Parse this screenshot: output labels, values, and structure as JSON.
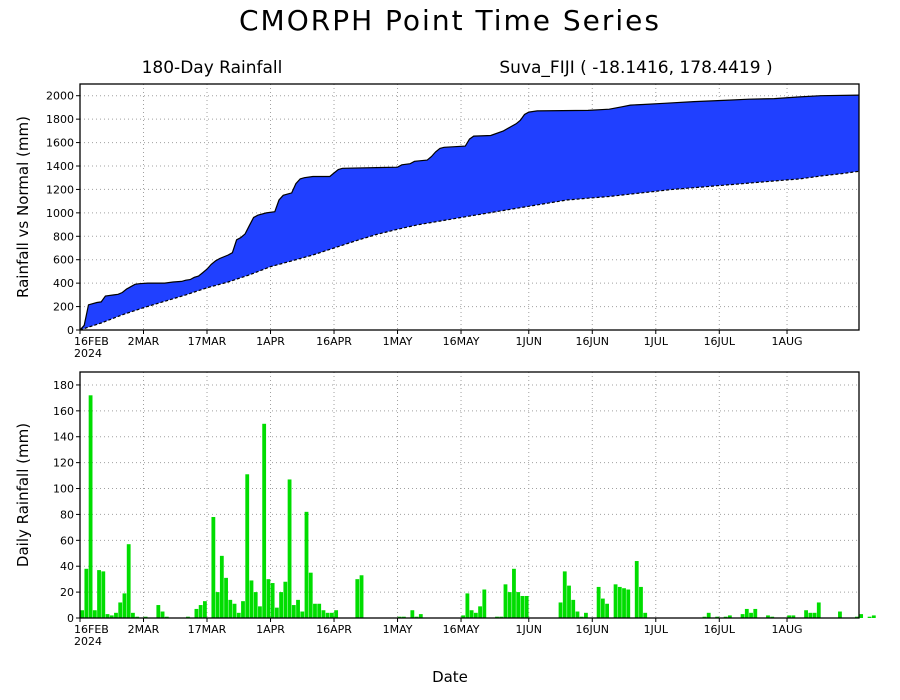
{
  "page": {
    "title": "CMORPH Point Time Series",
    "left_subtitle": "180-Day Rainfall",
    "right_subtitle": "Suva_FIJI ( -18.1416, 178.4419 )",
    "xlabel": "Date",
    "year_label": "2024"
  },
  "colors": {
    "fill": "#2040ff",
    "bars": "#00dd00",
    "grid": "#a0a0a0",
    "axis": "#000000"
  },
  "chart_data": [
    {
      "type": "area",
      "title": "180-Day Rainfall",
      "ylabel": "Rainfall vs Normal (mm)",
      "ylim": [
        0,
        2100
      ],
      "yticks": [
        0,
        200,
        400,
        600,
        800,
        1000,
        1200,
        1400,
        1600,
        1800,
        2000
      ],
      "xlim_days": [
        0,
        184
      ],
      "xticks": [
        {
          "day": 0,
          "label": "16FEB"
        },
        {
          "day": 15,
          "label": "2MAR"
        },
        {
          "day": 30,
          "label": "17MAR"
        },
        {
          "day": 45,
          "label": "1APR"
        },
        {
          "day": 60,
          "label": "16APR"
        },
        {
          "day": 75,
          "label": "1MAY"
        },
        {
          "day": 90,
          "label": "16MAY"
        },
        {
          "day": 106,
          "label": "1JUN"
        },
        {
          "day": 121,
          "label": "16JUN"
        },
        {
          "day": 136,
          "label": "1JUL"
        },
        {
          "day": 151,
          "label": "16JUL"
        },
        {
          "day": 167,
          "label": "1AUG"
        }
      ],
      "grid": true,
      "series": [
        {
          "role": "observed",
          "points": [
            [
              0,
              0
            ],
            [
              1,
              40
            ],
            [
              2,
              215
            ],
            [
              4,
              235
            ],
            [
              5,
              240
            ],
            [
              6,
              290
            ],
            [
              8,
              300
            ],
            [
              9,
              305
            ],
            [
              10,
              320
            ],
            [
              11,
              350
            ],
            [
              12,
              370
            ],
            [
              13,
              390
            ],
            [
              14,
              395
            ],
            [
              16,
              400
            ],
            [
              20,
              400
            ],
            [
              22,
              410
            ],
            [
              24,
              415
            ],
            [
              25,
              425
            ],
            [
              26,
              430
            ],
            [
              27,
              450
            ],
            [
              28,
              460
            ],
            [
              29,
              490
            ],
            [
              30,
              520
            ],
            [
              31,
              560
            ],
            [
              32,
              590
            ],
            [
              33,
              610
            ],
            [
              35,
              640
            ],
            [
              36,
              660
            ],
            [
              37,
              770
            ],
            [
              38,
              790
            ],
            [
              39,
              820
            ],
            [
              40,
              890
            ],
            [
              41,
              960
            ],
            [
              42,
              980
            ],
            [
              44,
              1000
            ],
            [
              46,
              1010
            ],
            [
              47,
              1110
            ],
            [
              48,
              1150
            ],
            [
              49,
              1160
            ],
            [
              50,
              1170
            ],
            [
              51,
              1250
            ],
            [
              52,
              1290
            ],
            [
              53,
              1300
            ],
            [
              55,
              1310
            ],
            [
              59,
              1310
            ],
            [
              60,
              1340
            ],
            [
              61,
              1370
            ],
            [
              62,
              1380
            ],
            [
              75,
              1390
            ],
            [
              76,
              1410
            ],
            [
              78,
              1420
            ],
            [
              79,
              1440
            ],
            [
              82,
              1450
            ],
            [
              83,
              1480
            ],
            [
              84,
              1520
            ],
            [
              85,
              1550
            ],
            [
              86,
              1560
            ],
            [
              91,
              1570
            ],
            [
              92,
              1630
            ],
            [
              93,
              1655
            ],
            [
              97,
              1660
            ],
            [
              100,
              1700
            ],
            [
              101,
              1720
            ],
            [
              103,
              1760
            ],
            [
              104,
              1790
            ],
            [
              105,
              1840
            ],
            [
              106,
              1860
            ],
            [
              108,
              1870
            ],
            [
              120,
              1875
            ],
            [
              125,
              1885
            ],
            [
              128,
              1905
            ],
            [
              130,
              1920
            ],
            [
              133,
              1925
            ],
            [
              138,
              1935
            ],
            [
              145,
              1950
            ],
            [
              152,
              1960
            ],
            [
              158,
              1970
            ],
            [
              164,
              1975
            ],
            [
              170,
              1990
            ],
            [
              175,
              2000
            ],
            [
              184,
              2005
            ]
          ]
        },
        {
          "role": "normal",
          "points": [
            [
              0,
              0
            ],
            [
              5,
              60
            ],
            [
              10,
              130
            ],
            [
              15,
              190
            ],
            [
              20,
              245
            ],
            [
              25,
              300
            ],
            [
              30,
              360
            ],
            [
              35,
              410
            ],
            [
              40,
              470
            ],
            [
              45,
              540
            ],
            [
              50,
              590
            ],
            [
              55,
              640
            ],
            [
              60,
              700
            ],
            [
              65,
              760
            ],
            [
              70,
              815
            ],
            [
              75,
              860
            ],
            [
              80,
              900
            ],
            [
              85,
              930
            ],
            [
              90,
              960
            ],
            [
              95,
              990
            ],
            [
              100,
              1020
            ],
            [
              105,
              1050
            ],
            [
              110,
              1080
            ],
            [
              115,
              1110
            ],
            [
              120,
              1125
            ],
            [
              125,
              1140
            ],
            [
              130,
              1160
            ],
            [
              135,
              1180
            ],
            [
              140,
              1200
            ],
            [
              145,
              1215
            ],
            [
              150,
              1230
            ],
            [
              155,
              1245
            ],
            [
              160,
              1260
            ],
            [
              165,
              1275
            ],
            [
              170,
              1290
            ],
            [
              175,
              1315
            ],
            [
              180,
              1335
            ],
            [
              184,
              1355
            ]
          ]
        }
      ]
    },
    {
      "type": "bar",
      "ylabel": "Daily Rainfall (mm)",
      "ylim": [
        0,
        190
      ],
      "yticks": [
        0,
        20,
        40,
        60,
        80,
        100,
        120,
        140,
        160,
        180
      ],
      "xlim_days": [
        0,
        184
      ],
      "grid": true,
      "values": [
        6,
        38,
        172,
        6,
        37,
        36,
        3,
        2,
        4,
        12,
        19,
        57,
        4,
        1,
        0,
        1,
        0,
        0,
        10,
        5,
        1,
        0,
        0,
        0,
        0,
        1,
        0,
        7,
        10,
        13,
        0,
        78,
        20,
        48,
        31,
        14,
        11,
        4,
        13,
        111,
        29,
        20,
        9,
        150,
        30,
        27,
        8,
        20,
        28,
        107,
        10,
        14,
        5,
        82,
        35,
        11,
        11,
        6,
        4,
        4,
        6,
        0,
        0,
        0,
        0,
        30,
        33,
        0,
        0,
        0,
        0,
        0,
        0,
        0,
        0,
        1,
        1,
        0,
        6,
        1,
        3,
        0,
        0,
        0,
        0,
        0,
        0,
        0,
        0,
        0,
        2,
        19,
        6,
        4,
        9,
        22,
        0,
        0,
        1,
        1,
        26,
        20,
        38,
        20,
        17,
        17,
        0,
        0,
        0,
        0,
        0,
        0,
        0,
        12,
        36,
        25,
        14,
        5,
        1,
        4,
        0,
        0,
        24,
        15,
        11,
        0,
        26,
        24,
        23,
        22,
        0,
        44,
        24,
        4,
        0,
        0,
        0,
        0,
        0,
        0,
        0,
        0,
        0,
        0,
        0,
        0,
        0,
        1,
        4,
        0,
        1,
        0,
        1,
        2,
        0,
        0,
        3,
        7,
        4,
        7,
        0,
        0,
        2,
        1,
        0,
        0,
        0,
        2,
        2,
        0,
        0,
        6,
        4,
        4,
        12,
        0,
        0,
        0,
        0,
        5,
        0,
        0,
        0,
        1,
        3,
        0,
        1,
        2
      ]
    }
  ]
}
